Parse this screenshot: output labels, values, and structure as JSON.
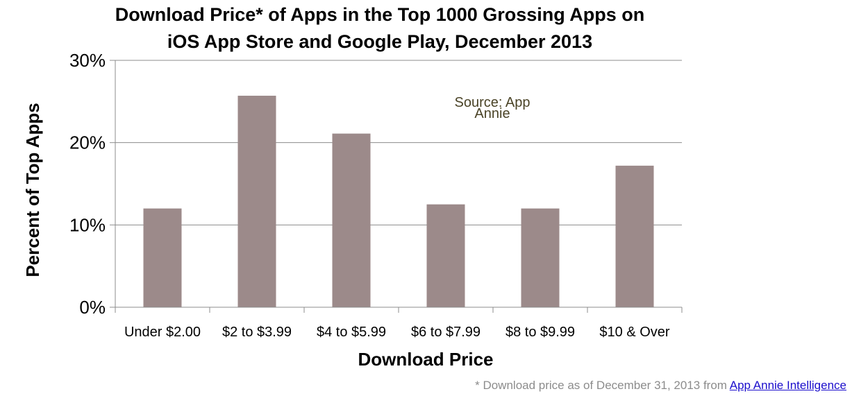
{
  "chart_data": {
    "type": "bar",
    "title": "Download Price* of Apps in the Top 1000 Grossing Apps on iOS App Store and Google Play, December 2013",
    "title_lines": [
      "Download Price* of Apps in the Top 1000 Grossing Apps on",
      "iOS App Store and Google Play, December 2013"
    ],
    "xlabel": "Download Price",
    "ylabel": "Percent of Top Apps",
    "categories": [
      "Under $2.00",
      "$2 to $3.99",
      "$4 to $5.99",
      "$6 to $7.99",
      "$8 to $9.99",
      "$10 & Over"
    ],
    "values": [
      12,
      25.7,
      21.1,
      12.5,
      12,
      17.2
    ],
    "ylim": [
      0,
      30
    ],
    "yticks": [
      0,
      10,
      20,
      30
    ],
    "ytick_labels": [
      "0%",
      "10%",
      "20%",
      "30%"
    ],
    "grid": true,
    "bar_color": "#9c8a8a",
    "annotation_lines": [
      "Source: App",
      "Annie"
    ]
  },
  "footnote": {
    "text": "* Download price as of December 31, 2013 from ",
    "link_text": "App Annie Intelligence",
    "link_color": "#1a0dcc"
  }
}
